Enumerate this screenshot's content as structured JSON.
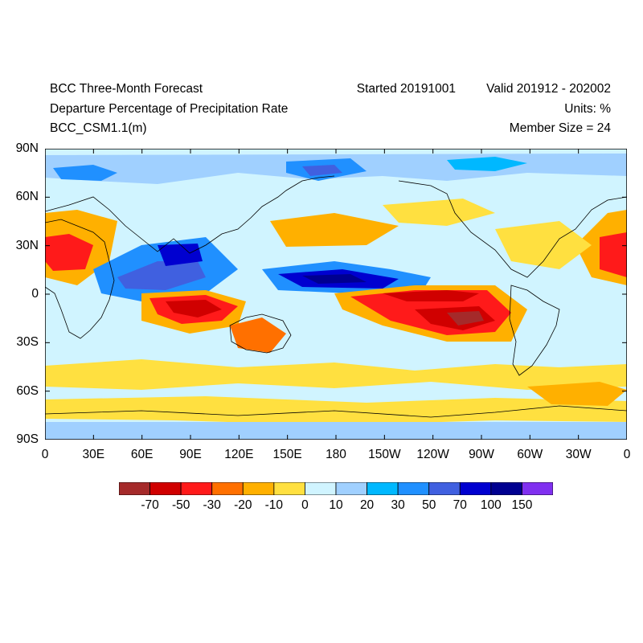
{
  "header": {
    "title_line1": "BCC Three-Month Forecast",
    "title_line2": "Departure Percentage of Precipitation Rate",
    "title_line3": "BCC_CSM1.1(m)",
    "started": "Started 20191001",
    "valid": "Valid 201912 - 202002",
    "units": "Units: %",
    "member_size": "Member Size = 24"
  },
  "axes": {
    "lat_labels": [
      "90N",
      "60N",
      "30N",
      "0",
      "30S",
      "60S",
      "90S"
    ],
    "lon_labels": [
      "0",
      "30E",
      "60E",
      "90E",
      "120E",
      "150E",
      "180",
      "150W",
      "120W",
      "90W",
      "60W",
      "30W",
      "0"
    ]
  },
  "colorbar": {
    "labels": [
      "-70",
      "-50",
      "-30",
      "-20",
      "-10",
      "0",
      "10",
      "20",
      "30",
      "50",
      "70",
      "100",
      "150"
    ],
    "colors": [
      "#a52a2a",
      "#d00000",
      "#ff1a1a",
      "#ff7000",
      "#ffb000",
      "#ffe040",
      "#d0f4ff",
      "#a0d0ff",
      "#00b8ff",
      "#2090ff",
      "#4060e0",
      "#0000d0",
      "#000090",
      "#8030f0"
    ]
  },
  "map": {
    "projection": "cylindrical equidistant",
    "lon_range": [
      0,
      360
    ],
    "lat_range": [
      -90,
      90
    ],
    "background_color": "#d0f4ff"
  }
}
